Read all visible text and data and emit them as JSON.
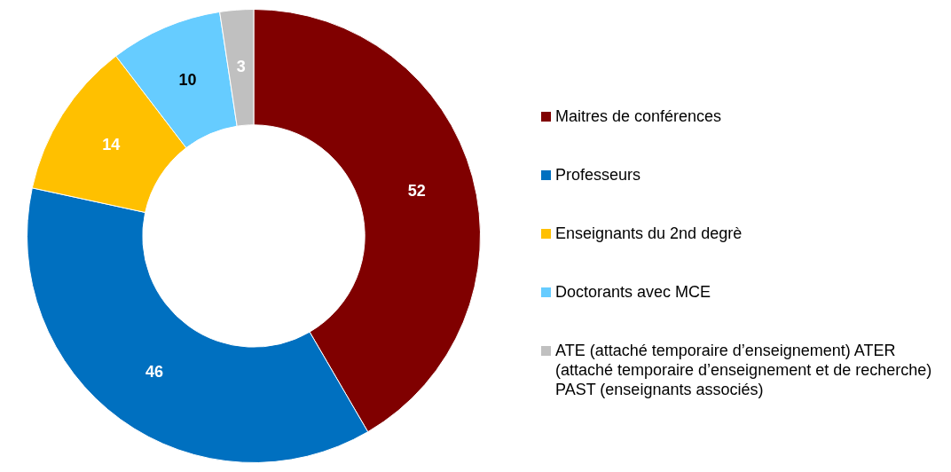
{
  "chart_data": {
    "type": "donut",
    "categories": [
      "Maitres de conférences",
      "Professeurs",
      "Enseignants du 2nd degrè",
      "Doctorants avec MCE",
      "ATE (attaché temporaire d’enseignement) ATER (attaché temporaire d’enseignement et de recherche) PAST (enseignants associés)"
    ],
    "values": [
      52,
      46,
      14,
      10,
      3
    ],
    "colors": [
      "#800000",
      "#0070c0",
      "#ffc000",
      "#66ccff",
      "#c0c0c0"
    ],
    "data_labels": true,
    "legend": "right"
  }
}
